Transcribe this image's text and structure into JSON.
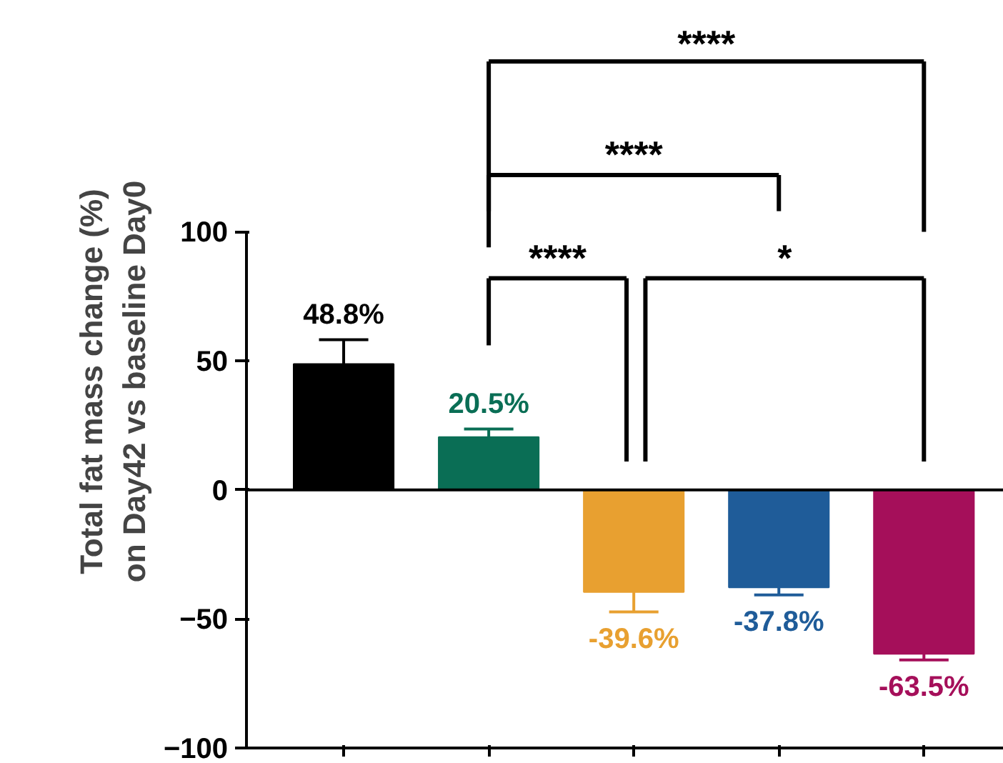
{
  "chart_data": {
    "type": "bar",
    "ylabel": "Total fat mass change (%)\non Day42 vs baseline Day0",
    "categories": [
      null,
      null,
      null,
      null,
      null
    ],
    "values": [
      48.8,
      20.5,
      -39.6,
      -37.8,
      -63.5
    ],
    "colors": [
      "#000000",
      "#0a6e55",
      "#e8a030",
      "#1f5c99",
      "#a50f5a"
    ],
    "errors": [
      [
        48.8,
        58.2
      ],
      [
        20.5,
        23.6
      ],
      [
        -47.3,
        -39.6
      ],
      [
        -40.7,
        -37.8
      ],
      [
        -65.9,
        -63.5
      ]
    ],
    "value_labels": [
      "48.8%",
      "20.5%",
      "-39.6%",
      "-37.8%",
      "-63.5%"
    ],
    "ylim": [
      -100,
      100
    ],
    "yticks": [
      -100,
      -50,
      0,
      50,
      100
    ],
    "ref_lines": [
      {
        "axis": "y",
        "value": 0
      }
    ],
    "annotations": [
      "****",
      "****",
      "****",
      "*"
    ],
    "tick_labels": "y",
    "grid": false
  }
}
